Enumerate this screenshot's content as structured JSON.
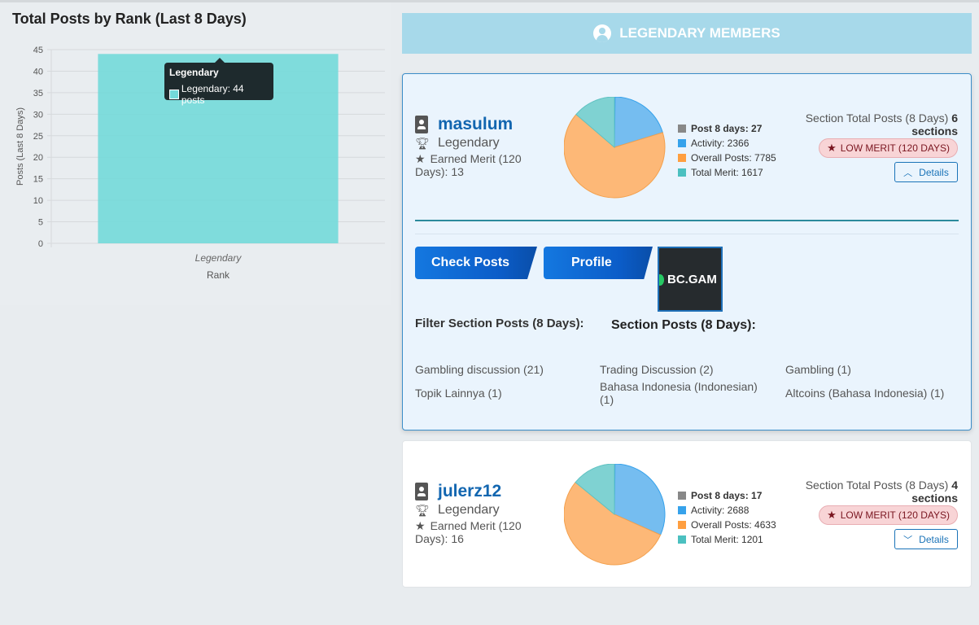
{
  "chart": {
    "title": "Total Posts by Rank (Last 8 Days)",
    "tooltip": {
      "title": "Legendary",
      "label": "Legendary: 44 posts"
    }
  },
  "chart_data": {
    "type": "bar",
    "title": "Total Posts by Rank (Last 8 Days)",
    "categories": [
      "Legendary"
    ],
    "values": [
      44
    ],
    "xlabel": "Rank",
    "ylabel": "Posts (Last 8 Days)",
    "ylim": [
      0,
      45
    ],
    "yticks": [
      0,
      5,
      10,
      15,
      20,
      25,
      30,
      35,
      40,
      45
    ],
    "grid": true,
    "bar_color": "#73d9d9"
  },
  "header": {
    "title": "LEGENDARY MEMBERS",
    "icon": "user-circle-icon"
  },
  "members": [
    {
      "name": "masulum",
      "rank": "Legendary",
      "merit_text": "Earned Merit (120 Days): 13",
      "stats": {
        "post8": "Post 8 days: 27",
        "activity": "Activity: 2366",
        "overall": "Overall Posts: 7785",
        "merit": "Total Merit: 1617"
      },
      "pie": [
        27,
        2366,
        7785,
        1617
      ],
      "section_total_prefix": "Section Total Posts (8 Days) ",
      "section_total_value": "6 sections",
      "low_merit": "LOW MERIT (120 DAYS)",
      "details": "Details",
      "details_icon": "chevron-up-icon",
      "check_posts": "Check Posts",
      "profile": "Profile",
      "ad": "BC.GAM",
      "filter_label": "Filter Section Posts (8 Days):",
      "section_label": "Section Posts (8 Days):",
      "sections": [
        "Gambling discussion (21)",
        "Trading Discussion (2)",
        "Gambling (1)",
        "Topik Lainnya (1)",
        "Bahasa Indonesia (Indonesian) (1)",
        "Altcoins (Bahasa Indonesia) (1)"
      ]
    },
    {
      "name": "julerz12",
      "rank": "Legendary",
      "merit_text": "Earned Merit (120 Days): 16",
      "stats": {
        "post8": "Post 8 days: 17",
        "activity": "Activity: 2688",
        "overall": "Overall Posts: 4633",
        "merit": "Total Merit: 1201"
      },
      "pie": [
        17,
        2688,
        4633,
        1201
      ],
      "section_total_prefix": "Section Total Posts (8 Days) ",
      "section_total_value": "4 sections",
      "low_merit": "LOW MERIT (120 DAYS)",
      "details": "Details",
      "details_icon": "chevron-down-icon"
    }
  ],
  "colors": {
    "post8": "#888888",
    "activity": "#36a2eb",
    "overall": "#ff9f40",
    "merit": "#4bc0c0"
  }
}
